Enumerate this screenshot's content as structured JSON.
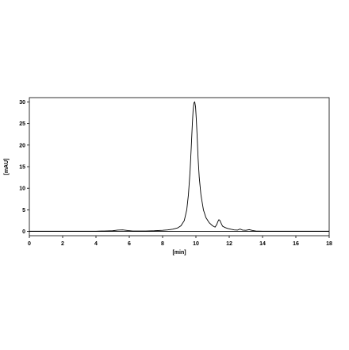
{
  "chart_data": {
    "type": "line",
    "title": "",
    "xlabel": "[min]",
    "ylabel": "[mAU]",
    "xlim": [
      0,
      18
    ],
    "ylim": [
      -1,
      31
    ],
    "xticks": [
      0,
      2,
      4,
      6,
      8,
      10,
      12,
      14,
      16,
      18
    ],
    "yticks": [
      0,
      5,
      10,
      15,
      20,
      25,
      30
    ],
    "grid": false,
    "legend": "none",
    "line_color": "#000000",
    "baseline": 0,
    "series": [
      {
        "x": [
          0,
          1,
          2,
          3,
          4,
          4.5,
          5,
          5.3,
          5.6,
          5.9,
          6.2,
          6.6,
          7,
          7.5,
          8,
          8.3,
          8.6,
          8.9,
          9.1,
          9.3,
          9.45,
          9.55,
          9.65,
          9.72,
          9.78,
          9.83,
          9.88,
          9.93,
          9.98,
          10.03,
          10.08,
          10.13,
          10.2,
          10.3,
          10.45,
          10.6,
          10.8,
          11.0,
          11.15,
          11.25,
          11.32,
          11.38,
          11.43,
          11.5,
          11.6,
          11.75,
          11.9,
          12.1,
          12.3,
          12.5,
          12.65,
          12.8,
          13.0,
          13.2,
          13.4,
          13.6,
          14,
          15,
          16,
          17,
          18
        ],
        "y": [
          0.05,
          0.05,
          0.05,
          0.05,
          0.05,
          0.1,
          0.15,
          0.3,
          0.35,
          0.2,
          0.1,
          0.1,
          0.1,
          0.15,
          0.25,
          0.35,
          0.5,
          0.8,
          1.3,
          2.5,
          5.0,
          8.5,
          14.0,
          19.5,
          24.5,
          28.0,
          29.8,
          30.0,
          28.8,
          25.5,
          21.5,
          17.0,
          12.5,
          8.5,
          5.0,
          3.2,
          2.0,
          1.3,
          1.0,
          1.6,
          2.3,
          2.7,
          2.6,
          2.0,
          1.2,
          0.9,
          0.7,
          0.5,
          0.35,
          0.3,
          0.55,
          0.3,
          0.25,
          0.4,
          0.2,
          0.1,
          0.05,
          0.05,
          0.05,
          0.05,
          0.05
        ]
      }
    ]
  }
}
